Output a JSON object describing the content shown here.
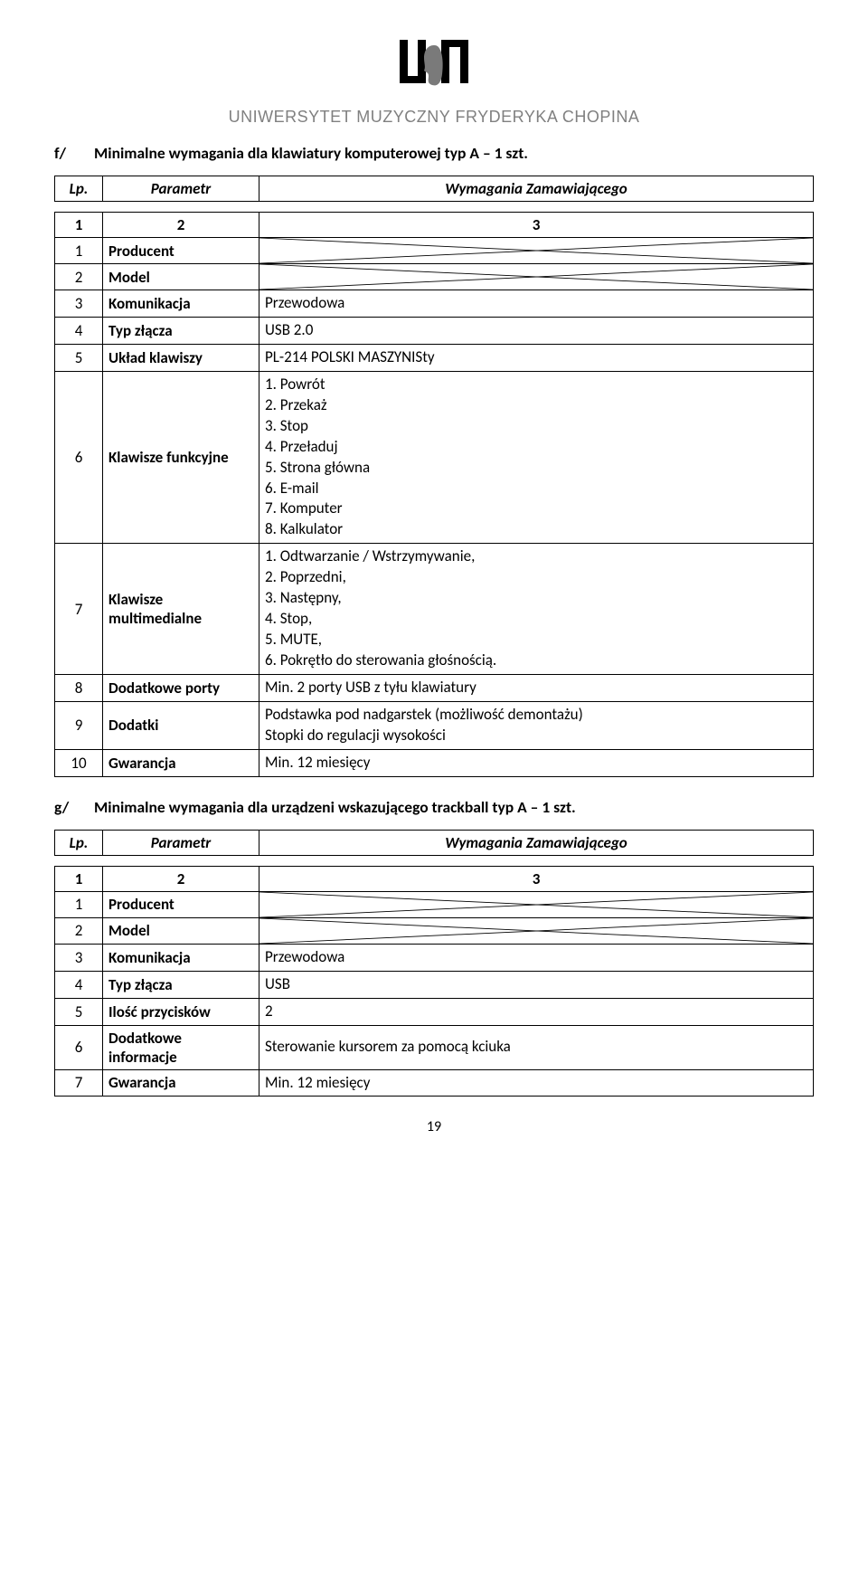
{
  "header": {
    "university": "UNIWERSYTET MUZYCZNY FRYDERYKA CHOPINA"
  },
  "section_f": {
    "letter": "f/",
    "title": "Minimalne wymagania dla klawiatury komputerowej typ A – 1 szt.",
    "columns": {
      "lp": "Lp.",
      "param": "Parametr",
      "wym": "Wymagania Zamawiającego"
    },
    "num_row": {
      "c1": "1",
      "c2": "2",
      "c3": "3"
    },
    "rows": [
      {
        "n": "1",
        "param": "Producent",
        "value": "",
        "diag": true
      },
      {
        "n": "2",
        "param": "Model",
        "value": "",
        "diag": true
      },
      {
        "n": "3",
        "param": "Komunikacja",
        "value": "Przewodowa"
      },
      {
        "n": "4",
        "param": "Typ złącza",
        "value": "USB 2.0"
      },
      {
        "n": "5",
        "param": "Układ klawiszy",
        "value": "PL-214 POLSKI MASZYNISty"
      },
      {
        "n": "6",
        "param": "Klawisze funkcyjne",
        "value": "1. Powrót\n2. Przekaż\n3. Stop\n4. Przeładuj\n5. Strona główna\n6. E-mail\n7. Komputer\n8. Kalkulator"
      },
      {
        "n": "7",
        "param": "Klawisze multimedialne",
        "value": "1. Odtwarzanie / Wstrzymywanie,\n2. Poprzedni,\n3. Następny,\n4. Stop,\n5. MUTE,\n6. Pokrętło do sterowania głośnością."
      },
      {
        "n": "8",
        "param": "Dodatkowe porty",
        "value": "Min. 2 porty USB z tyłu klawiatury"
      },
      {
        "n": "9",
        "param": "Dodatki",
        "value": "Podstawka pod nadgarstek (możliwość demontażu)\nStopki do regulacji wysokości"
      },
      {
        "n": "10",
        "param": "Gwarancja",
        "value": "Min. 12 miesięcy"
      }
    ]
  },
  "section_g": {
    "letter": "g/",
    "title": "Minimalne wymagania dla urządzeni wskazującego trackball typ A – 1 szt.",
    "columns": {
      "lp": "Lp.",
      "param": "Parametr",
      "wym": "Wymagania Zamawiającego"
    },
    "num_row": {
      "c1": "1",
      "c2": "2",
      "c3": "3"
    },
    "rows": [
      {
        "n": "1",
        "param": "Producent",
        "value": "",
        "diag": true
      },
      {
        "n": "2",
        "param": "Model",
        "value": "",
        "diag": true
      },
      {
        "n": "3",
        "param": "Komunikacja",
        "value": "Przewodowa"
      },
      {
        "n": "4",
        "param": "Typ złącza",
        "value": "USB"
      },
      {
        "n": "5",
        "param": "Ilość przycisków",
        "value": "2"
      },
      {
        "n": "6",
        "param": "Dodatkowe informacje",
        "value": "Sterowanie kursorem za pomocą kciuka"
      },
      {
        "n": "7",
        "param": "Gwarancja",
        "value": "Min. 12 miesięcy"
      }
    ]
  },
  "page_number": "19",
  "colors": {
    "text": "#000000",
    "grey": "#808080",
    "bg": "#ffffff",
    "border": "#000000"
  }
}
